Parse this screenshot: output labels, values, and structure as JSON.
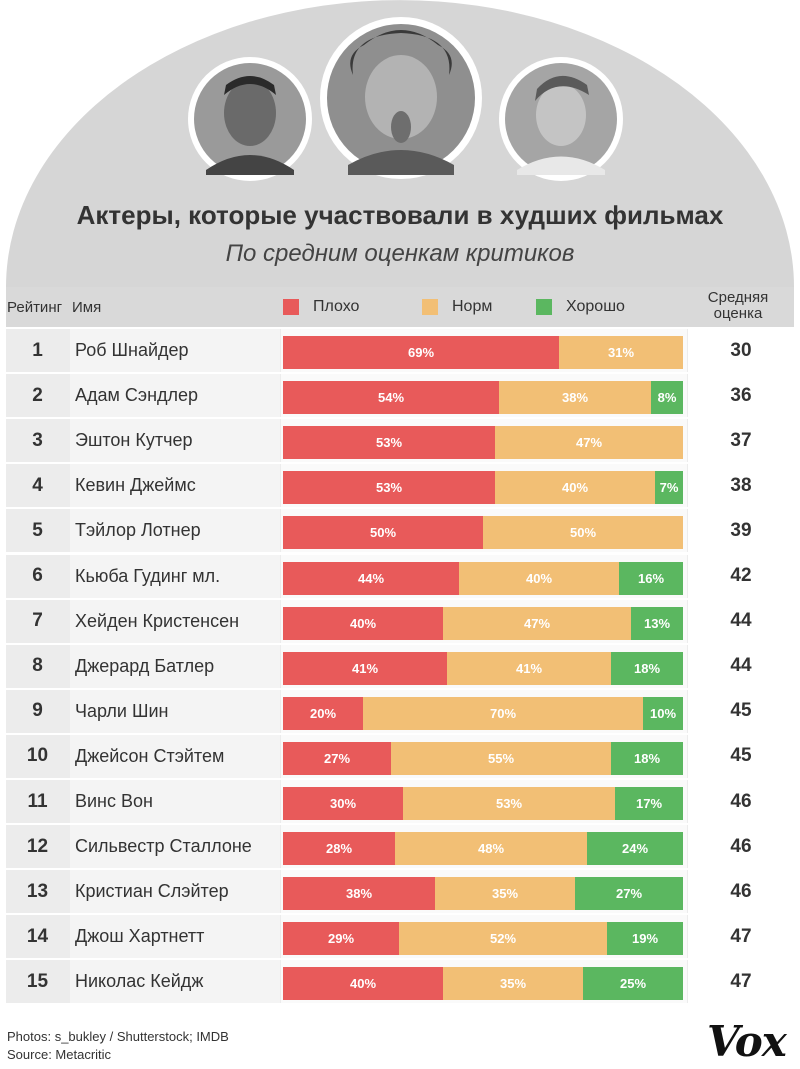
{
  "title": "Актеры, которые участвовали в худших фильмах",
  "subtitle": "По средним оценкам критиков",
  "header": {
    "rank_label": "Рейтинг",
    "name_label": "Имя",
    "avg_label_line1": "Средняя",
    "avg_label_line2": "оценка"
  },
  "legend": [
    {
      "label": "Плохо",
      "color": "#e85a5a"
    },
    {
      "label": "Норм",
      "color": "#f2bf75"
    },
    {
      "label": "Хорошо",
      "color": "#5bb760"
    }
  ],
  "photos": [
    {
      "name": "portrait-left"
    },
    {
      "name": "portrait-center"
    },
    {
      "name": "portrait-right"
    }
  ],
  "footer": {
    "photos_credit": "Photos: s_bukley / Shutterstock;  IMDB",
    "source": "Source: Metacritic"
  },
  "logo": "Vox",
  "colors": {
    "arch": "#d6d6d6",
    "bad": "#e85a5a",
    "ok": "#f2bf75",
    "good": "#5bb760"
  },
  "chart_data": {
    "type": "bar",
    "stacked": true,
    "orientation": "horizontal",
    "series": [
      {
        "name": "Плохо",
        "values": [
          69,
          54,
          53,
          53,
          50,
          44,
          40,
          41,
          20,
          27,
          30,
          28,
          38,
          29,
          40
        ]
      },
      {
        "name": "Норм",
        "values": [
          31,
          38,
          47,
          40,
          50,
          40,
          47,
          41,
          70,
          55,
          53,
          48,
          35,
          52,
          35
        ]
      },
      {
        "name": "Хорошо",
        "values": [
          0,
          8,
          0,
          7,
          0,
          16,
          13,
          18,
          10,
          18,
          17,
          24,
          27,
          19,
          25
        ]
      }
    ],
    "rows": [
      {
        "rank": "1",
        "name": "Роб Шнайдер",
        "avg": "30"
      },
      {
        "rank": "2",
        "name": "Адам Сэндлер",
        "avg": "36"
      },
      {
        "rank": "3",
        "name": "Эштон Кутчер",
        "avg": "37"
      },
      {
        "rank": "4",
        "name": "Кевин Джеймс",
        "avg": "38"
      },
      {
        "rank": "5",
        "name": "Тэйлор Лотнер",
        "avg": "39"
      },
      {
        "rank": "6",
        "name": "Кьюба Гудинг мл.",
        "avg": "42"
      },
      {
        "rank": "7",
        "name": "Хейден Кристенсен",
        "avg": "44"
      },
      {
        "rank": "8",
        "name": "Джерард Батлер",
        "avg": "44"
      },
      {
        "rank": "9",
        "name": "Чарли Шин",
        "avg": "45"
      },
      {
        "rank": "10",
        "name": "Джейсон Стэйтем",
        "avg": "45"
      },
      {
        "rank": "11",
        "name": "Винс Вон",
        "avg": "46"
      },
      {
        "rank": "12",
        "name": "Сильвестр Сталлоне",
        "avg": "46"
      },
      {
        "rank": "13",
        "name": "Кристиан Слэйтер",
        "avg": "46"
      },
      {
        "rank": "14",
        "name": "Джош Хартнетт",
        "avg": "47"
      },
      {
        "rank": "15",
        "name": "Николас Кейдж",
        "avg": "47"
      }
    ],
    "value_suffix": "%",
    "xlim": [
      0,
      100
    ]
  }
}
